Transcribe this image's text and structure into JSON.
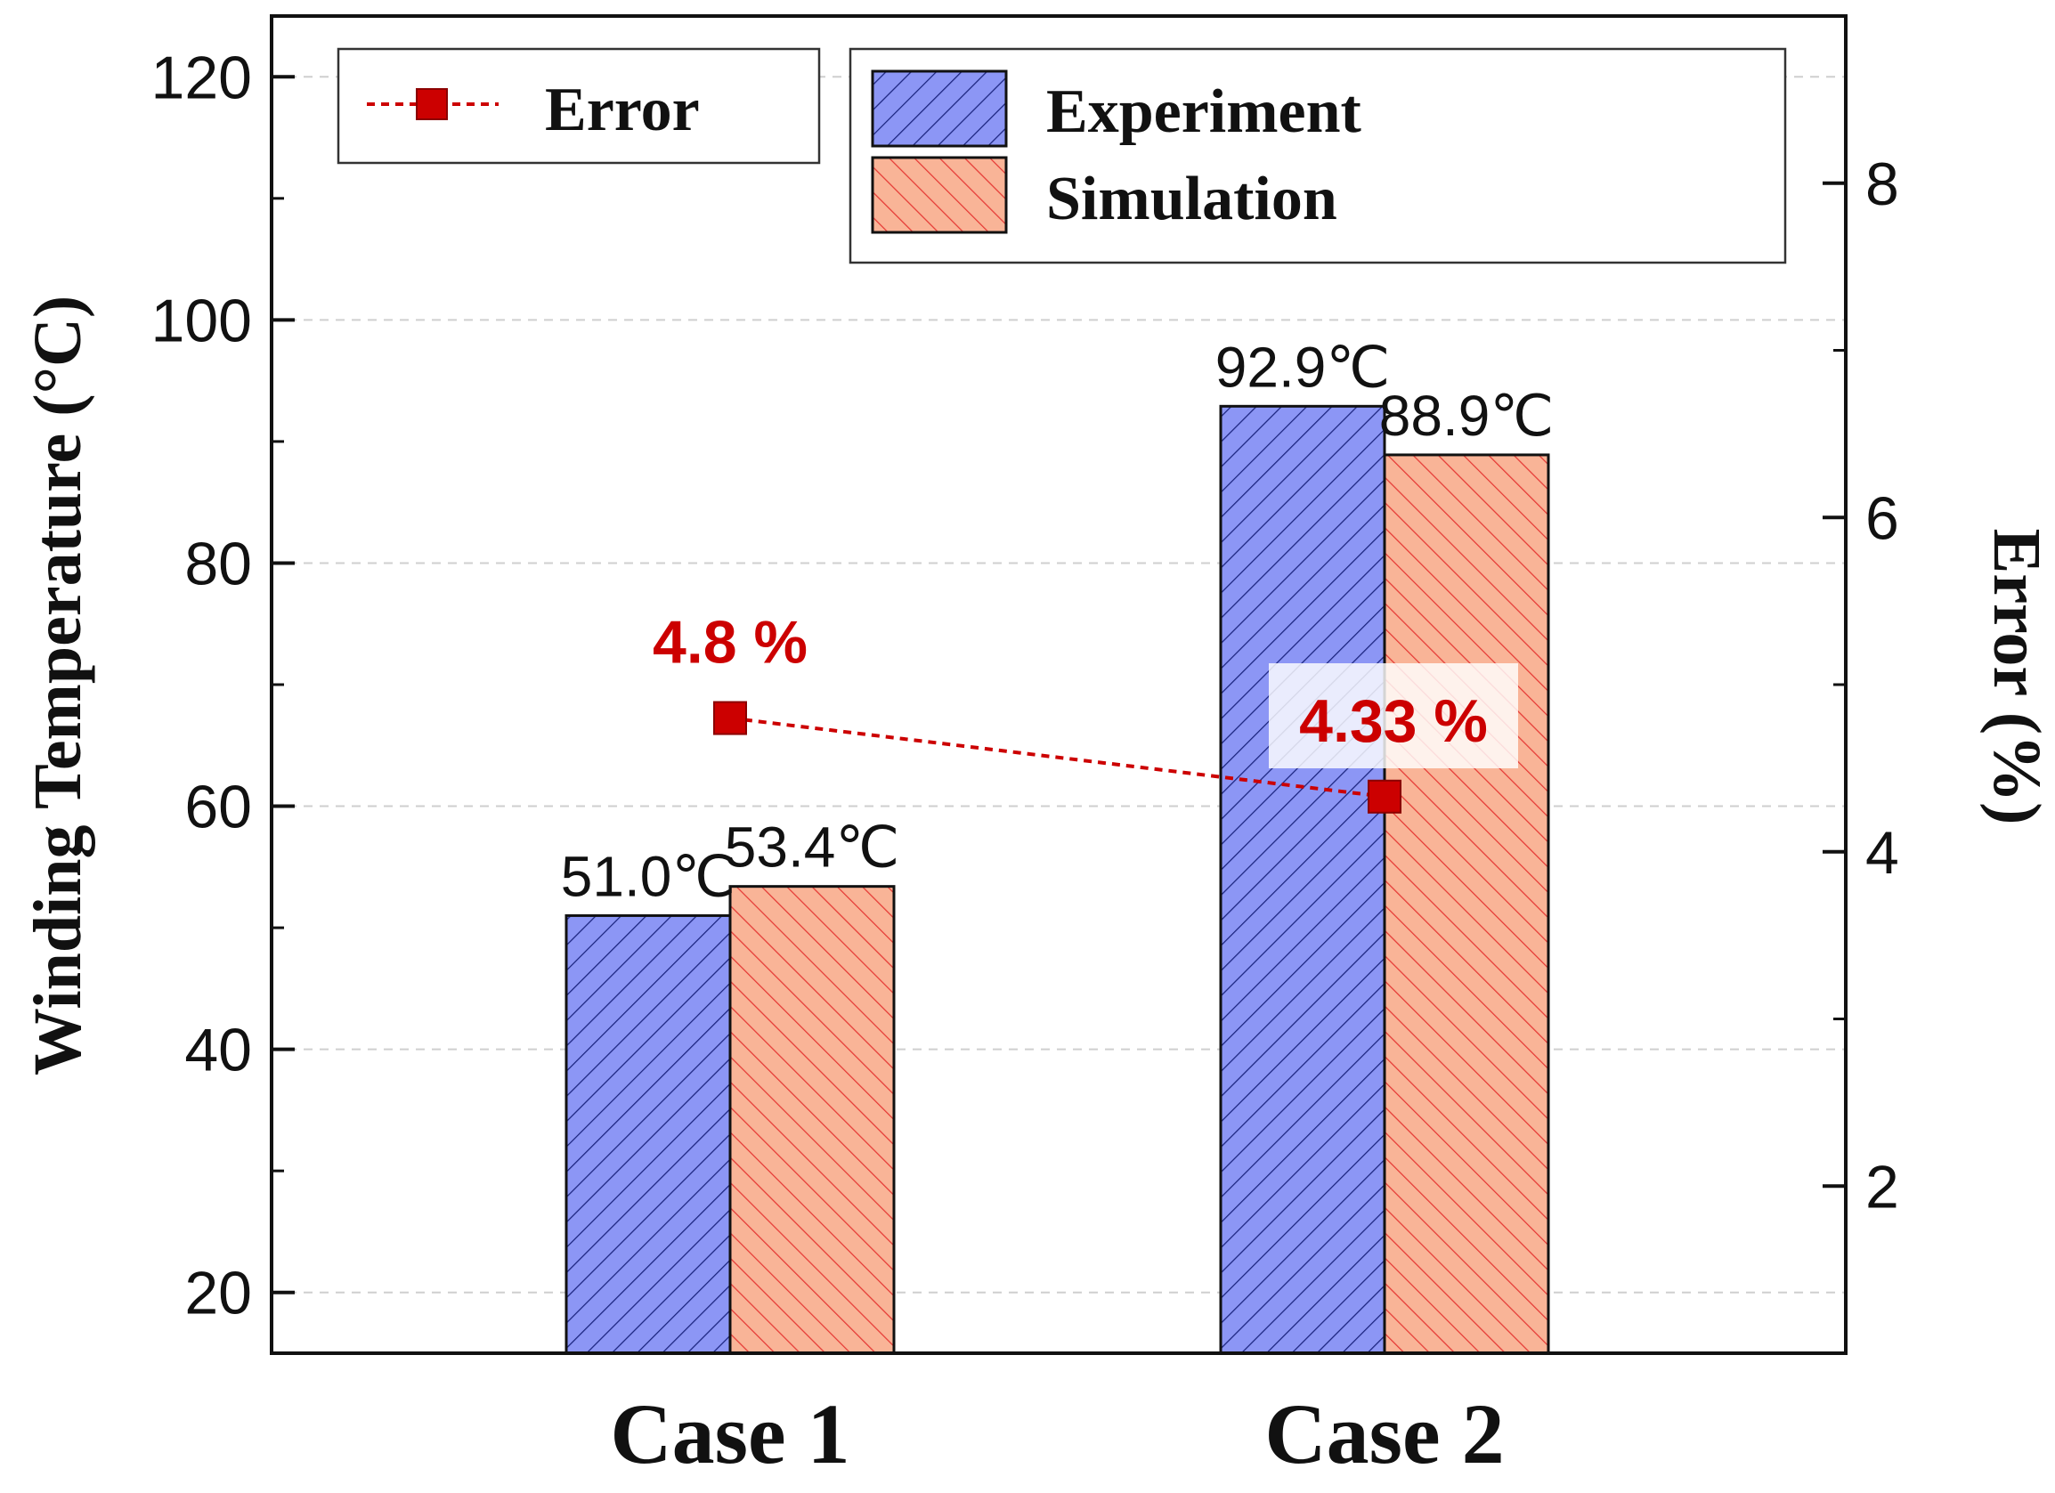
{
  "chart_data": {
    "type": "bar",
    "categories": [
      "Case 1",
      "Case 2"
    ],
    "series": [
      {
        "name": "Experiment",
        "values": [
          51.0,
          92.9
        ],
        "labels": [
          "51.0℃",
          "92.9℃"
        ],
        "color": "#8c96f5",
        "hatch_color": "#1a237e"
      },
      {
        "name": "Simulation",
        "values": [
          53.4,
          88.9
        ],
        "labels": [
          "53.4℃",
          "88.9℃"
        ],
        "color": "#f9b497",
        "hatch_color": "#e53935"
      }
    ],
    "line_series": {
      "name": "Error",
      "axis": "right",
      "values": [
        4.8,
        4.33
      ],
      "labels": [
        "4.8 %",
        "4.33 %"
      ],
      "color": "#cc0000"
    },
    "ylabel": "Winding Temperature (°C)",
    "y2label": "Error (%)",
    "ylim": [
      15,
      125
    ],
    "y_ticks": [
      20,
      40,
      60,
      80,
      100,
      120
    ],
    "y2lim": [
      1.0,
      9.0
    ],
    "y2_ticks": [
      2,
      4,
      6,
      8
    ],
    "grid": true,
    "legend": [
      {
        "position": "top-left",
        "entries": [
          "Error"
        ]
      },
      {
        "position": "top-right",
        "entries": [
          "Experiment",
          "Simulation"
        ]
      }
    ]
  }
}
